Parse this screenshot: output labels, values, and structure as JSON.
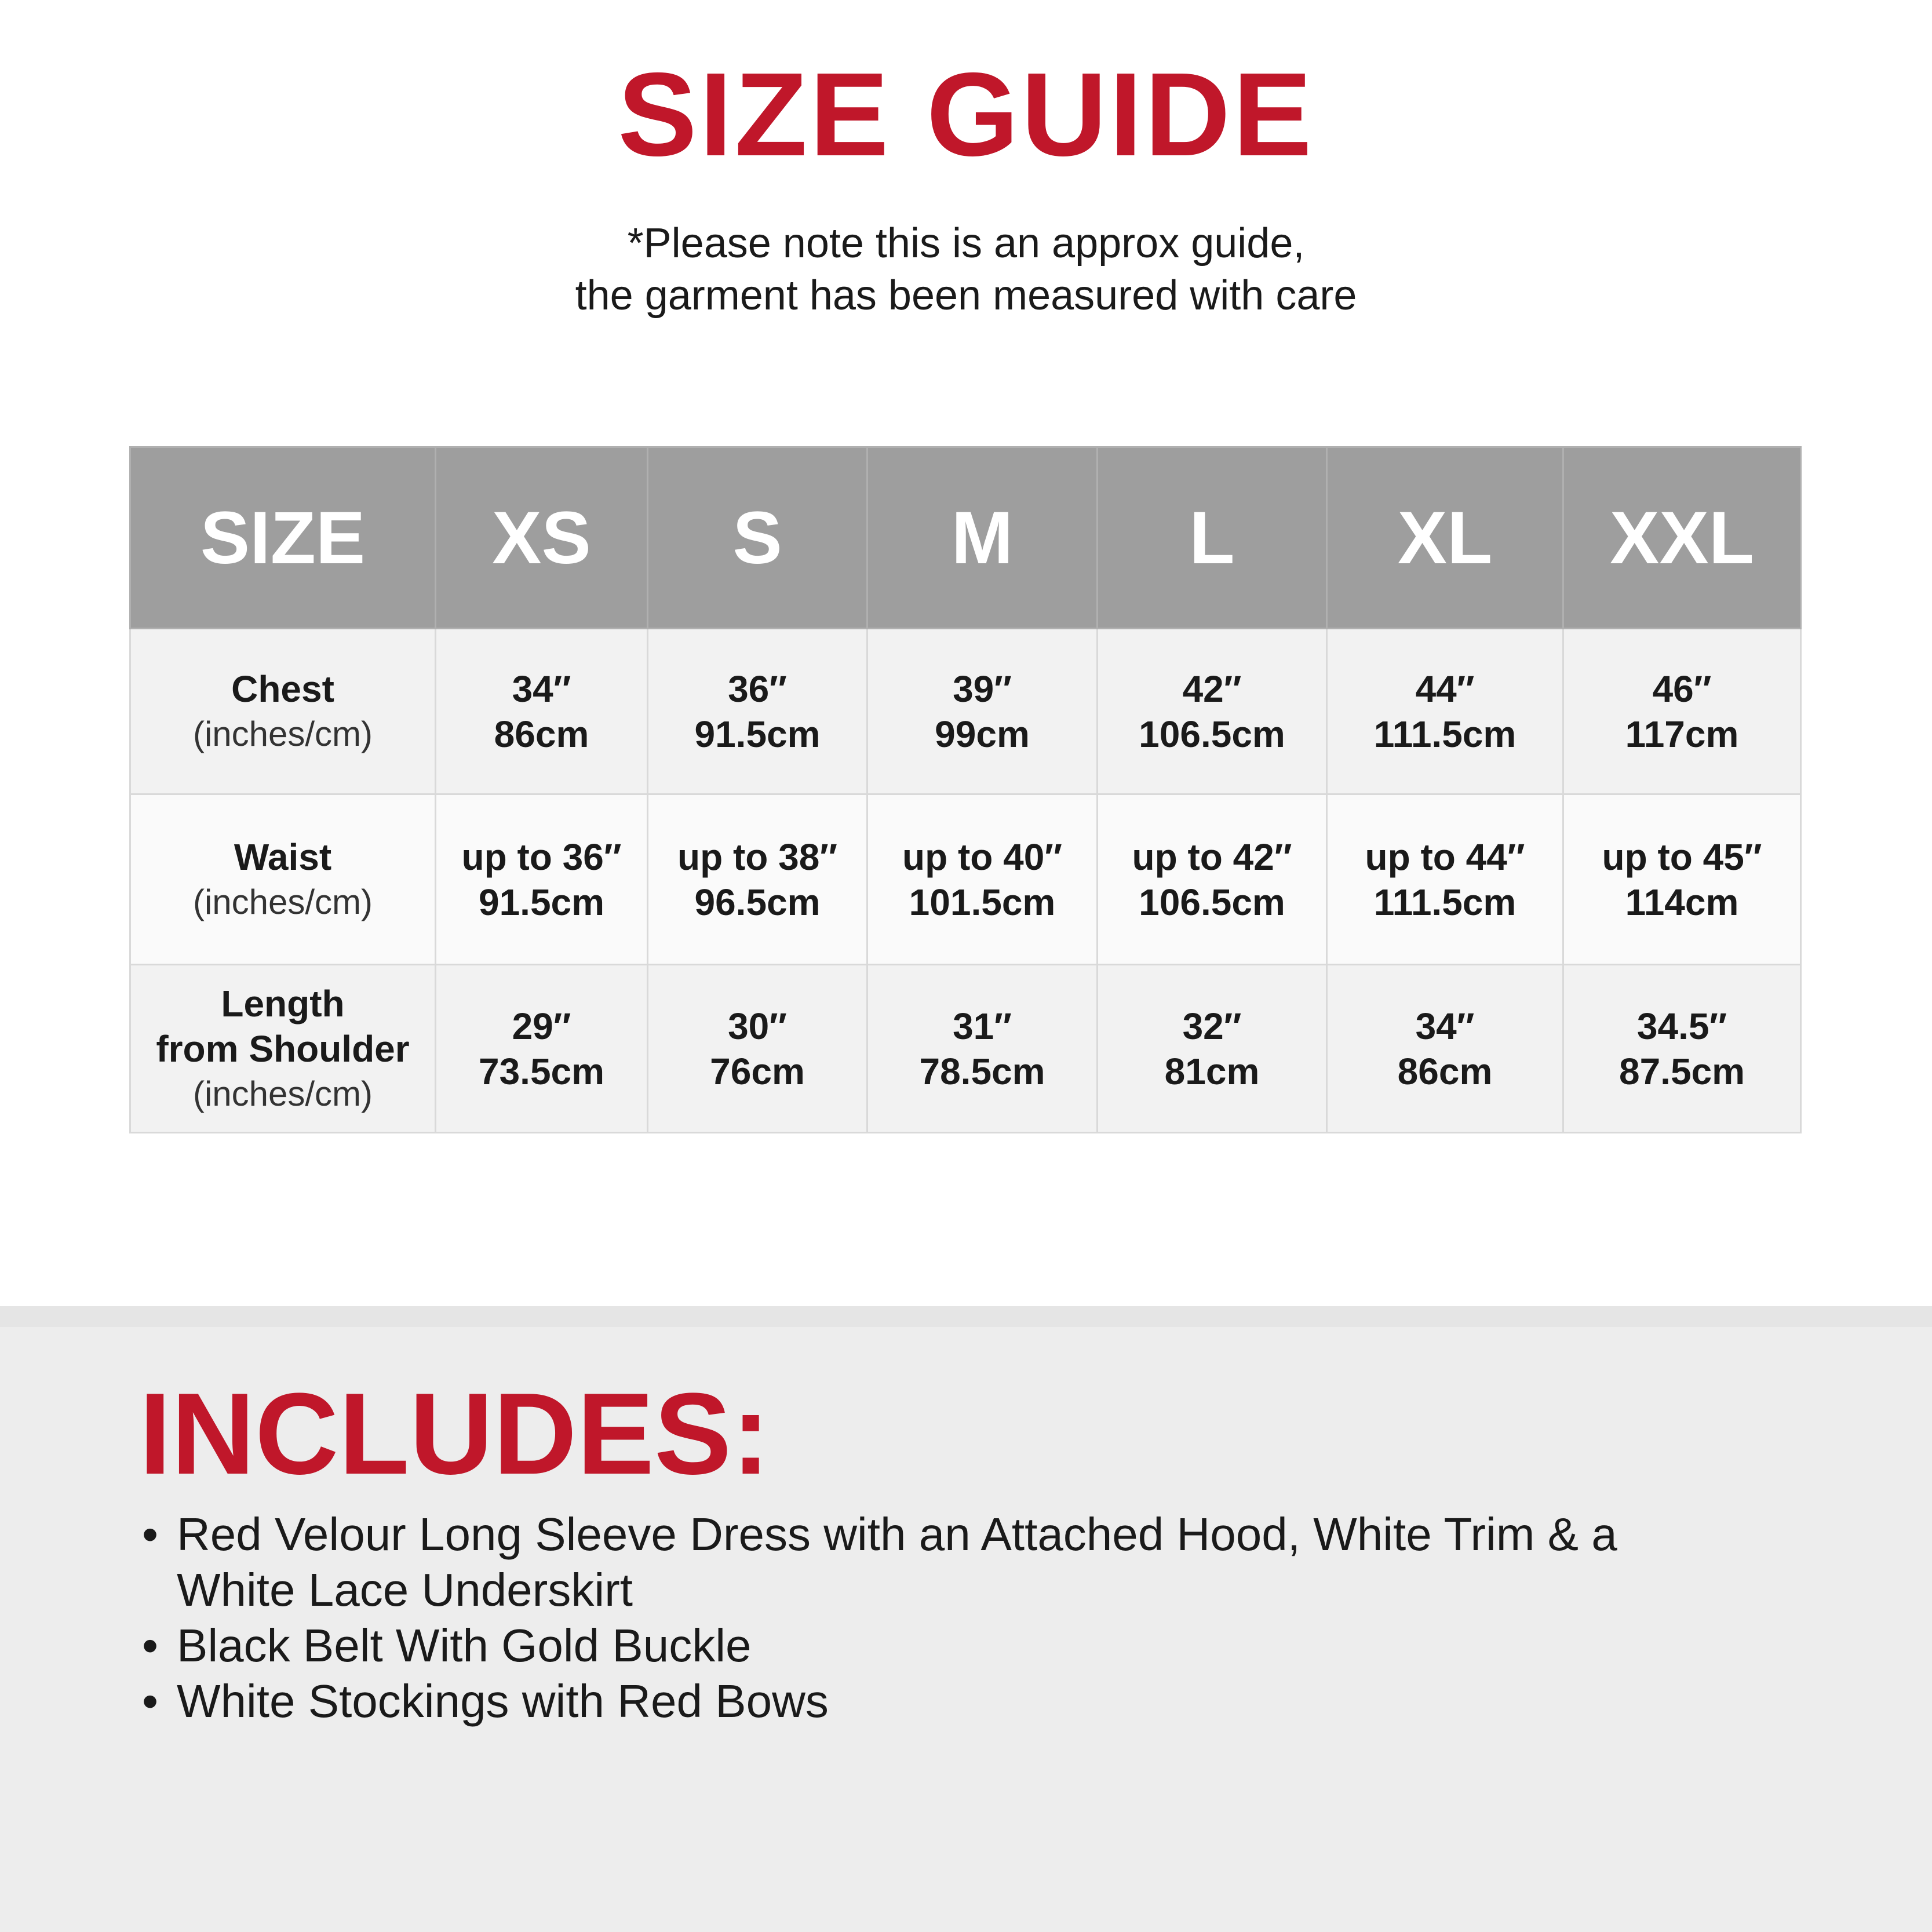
{
  "colors": {
    "accent": "#c0172a",
    "header_bg": "#9e9e9e",
    "section_bg": "#ededed"
  },
  "title": "SIZE GUIDE",
  "note": [
    "*Please note this is an approx guide,",
    "the garment has been measured with care"
  ],
  "table": {
    "headers": [
      "SIZE",
      "XS",
      "S",
      "M",
      "L",
      "XL",
      "XXL"
    ],
    "rows": [
      {
        "label": [
          "Chest"
        ],
        "unit": "(inches/cm)",
        "values": [
          [
            "34″",
            "86cm"
          ],
          [
            "36″",
            "91.5cm"
          ],
          [
            "39″",
            "99cm"
          ],
          [
            "42″",
            "106.5cm"
          ],
          [
            "44″",
            "111.5cm"
          ],
          [
            "46″",
            "117cm"
          ]
        ]
      },
      {
        "label": [
          "Waist"
        ],
        "unit": "(inches/cm)",
        "values": [
          [
            "up to 36″",
            "91.5cm"
          ],
          [
            "up to 38″",
            "96.5cm"
          ],
          [
            "up to 40″",
            "101.5cm"
          ],
          [
            "up to 42″",
            "106.5cm"
          ],
          [
            "up to 44″",
            "111.5cm"
          ],
          [
            "up to 45″",
            "114cm"
          ]
        ]
      },
      {
        "label": [
          "Length",
          "from Shoulder"
        ],
        "unit": "(inches/cm)",
        "values": [
          [
            "29″",
            "73.5cm"
          ],
          [
            "30″",
            "76cm"
          ],
          [
            "31″",
            "78.5cm"
          ],
          [
            "32″",
            "81cm"
          ],
          [
            "34″",
            "86cm"
          ],
          [
            "34.5″",
            "87.5cm"
          ]
        ]
      }
    ]
  },
  "includes": {
    "title": "INCLUDES:",
    "bullet": "•",
    "items": [
      "Red Velour Long Sleeve Dress with an Attached Hood, White Trim & a White Lace Underskirt",
      "Black Belt With Gold Buckle",
      "White Stockings with Red Bows"
    ]
  }
}
